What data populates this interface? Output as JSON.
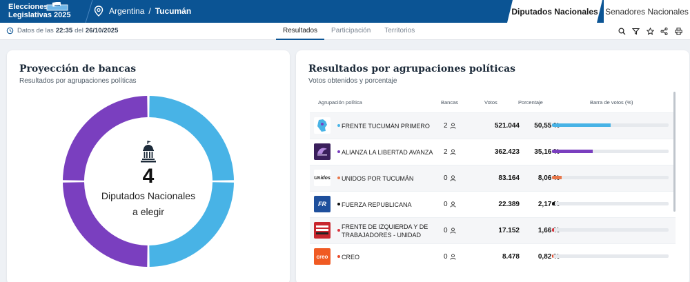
{
  "header": {
    "logo_line1": "Elecciones",
    "logo_line2": "Legislativas 2025",
    "country": "Argentina",
    "separator": "/",
    "province": "Tucumán",
    "tabs": [
      {
        "label": "Diputados Nacionales",
        "active": true
      },
      {
        "label": "Senadores Nacionales",
        "active": false
      }
    ]
  },
  "subbar": {
    "update_prefix": "Datos de las",
    "update_time": "22:35",
    "update_mid": "del",
    "update_date": "26/10/2025",
    "tabs": [
      {
        "label": "Resultados",
        "active": true
      },
      {
        "label": "Participación",
        "active": false
      },
      {
        "label": "Territorios",
        "active": false
      }
    ],
    "tools": [
      "search-icon",
      "filter-icon",
      "star-icon",
      "share-icon",
      "print-icon"
    ]
  },
  "seats_card": {
    "title": "Proyección de bancas",
    "subtitle": "Resultados por agrupaciones políticas",
    "total_seats": "4",
    "label_line1": "Diputados Nacionales",
    "label_line2": "a elegir",
    "segments": [
      {
        "party": "FRENTE TUCUMÁN PRIMERO",
        "seats": 2,
        "color": "#48b3e6"
      },
      {
        "party": "ALIANZA LA LIBERTAD AVANZA",
        "seats": 2,
        "color": "#7a3fbf"
      }
    ]
  },
  "results_card": {
    "title": "Resultados por agrupaciones políticas",
    "subtitle": "Votos obtenidos y porcentaje",
    "columns": {
      "party": "Agrupación política",
      "seats": "Bancas",
      "votes": "Votos",
      "percent": "Porcentaje",
      "bar": "Barra de votos (%)"
    },
    "rows": [
      {
        "name": "FRENTE TUCUMÁN PRIMERO",
        "seats": "2",
        "votes": "521.044",
        "percent": "50,55 %",
        "pct_value": 50.55,
        "color": "#48b3e6",
        "logo_bg": "#ffffff",
        "logo_text": ""
      },
      {
        "name": "ALIANZA LA LIBERTAD AVANZA",
        "seats": "2",
        "votes": "362.423",
        "percent": "35,16 %",
        "pct_value": 35.16,
        "color": "#7a3fbf",
        "logo_bg": "#3a1f5c",
        "logo_text": ""
      },
      {
        "name": "UNIDOS POR TUCUMÁN",
        "seats": "0",
        "votes": "83.164",
        "percent": "8,06 %",
        "pct_value": 8.06,
        "color": "#e8774a",
        "logo_bg": "#ffffff",
        "logo_text": "Unidos"
      },
      {
        "name": "FUERZA REPUBLICANA",
        "seats": "0",
        "votes": "22.389",
        "percent": "2,17 %",
        "pct_value": 2.17,
        "color": "#111111",
        "logo_bg": "#1e4f9c",
        "logo_text": "FR"
      },
      {
        "name": "FRENTE DE IZQUIERDA Y DE TRABAJADORES - UNIDAD",
        "seats": "0",
        "votes": "17.152",
        "percent": "1,66 %",
        "pct_value": 1.66,
        "color": "#d9363e",
        "logo_bg": "#c8262e",
        "logo_text": ""
      },
      {
        "name": "CREO",
        "seats": "0",
        "votes": "8.478",
        "percent": "0,82 %",
        "pct_value": 0.82,
        "color": "#e84a2a",
        "logo_bg": "#f05a23",
        "logo_text": "creo"
      }
    ]
  }
}
